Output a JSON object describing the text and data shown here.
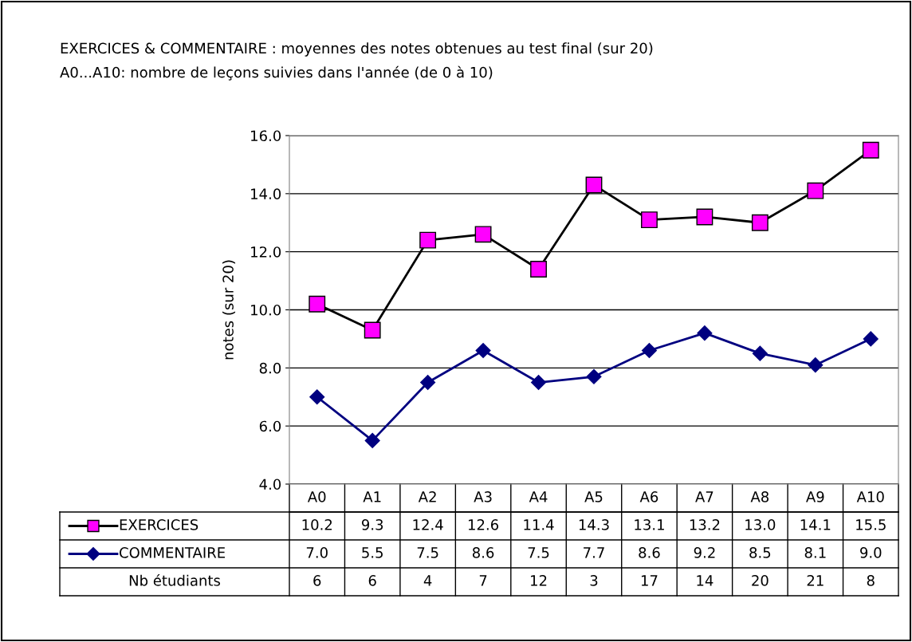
{
  "chart_data": {
    "type": "line",
    "title": "EXERCICES & COMMENTAIRE : moyennes des notes obtenues au test final (sur 20)",
    "subtitle": "A0...A10: nombre de leçons suivies dans l'année (de 0 à 10)",
    "ylabel": "notes (sur 20)",
    "categories": [
      "A0",
      "A1",
      "A2",
      "A3",
      "A4",
      "A5",
      "A6",
      "A7",
      "A8",
      "A9",
      "A10"
    ],
    "series": [
      {
        "name": "EXERCICES",
        "color": "#000000",
        "colors": [
          "#ff00ff",
          "#ff00ff",
          "#ff00ff",
          "#ff00ff",
          "#ff00ff",
          "#ff00ff",
          "#ff00ff",
          "#ff00ff",
          "#ff00ff",
          "#ff00ff",
          "#ff00ff"
        ],
        "marker": "square",
        "values": [
          10.2,
          9.3,
          12.4,
          12.6,
          11.4,
          14.3,
          13.1,
          13.2,
          13.0,
          14.1,
          15.5
        ],
        "value_labels": [
          "10.2",
          "9.3",
          "12.4",
          "12.6",
          "11.4",
          "14.3",
          "13.1",
          "13.2",
          "13.0",
          "14.1",
          "15.5"
        ]
      },
      {
        "name": "COMMENTAIRE",
        "color": "#000080",
        "marker": "diamond",
        "values": [
          7.0,
          5.5,
          7.5,
          8.6,
          7.5,
          7.7,
          8.6,
          9.2,
          8.5,
          8.1,
          9.0
        ],
        "value_labels": [
          "7.0",
          "5.5",
          "7.5",
          "8.6",
          "7.5",
          "7.7",
          "8.6",
          "9.2",
          "8.5",
          "8.1",
          "9.0"
        ]
      }
    ],
    "annotations": [
      "Nb étudiants",
      "6",
      "6",
      "4",
      "7",
      "12",
      "3",
      "17",
      "14",
      "20",
      "21",
      "8"
    ],
    "ylim": [
      4,
      16
    ],
    "yticks": [
      {
        "value": 4,
        "label": "4.0"
      },
      {
        "value": 6,
        "label": "6.0"
      },
      {
        "value": 8,
        "label": "8.0"
      },
      {
        "value": 10,
        "label": "10.0"
      },
      {
        "value": 12,
        "label": "12.0"
      },
      {
        "value": 14,
        "label": "14.0"
      },
      {
        "value": 16,
        "label": "16.0"
      }
    ],
    "grid": "y",
    "legend": "bottom"
  }
}
